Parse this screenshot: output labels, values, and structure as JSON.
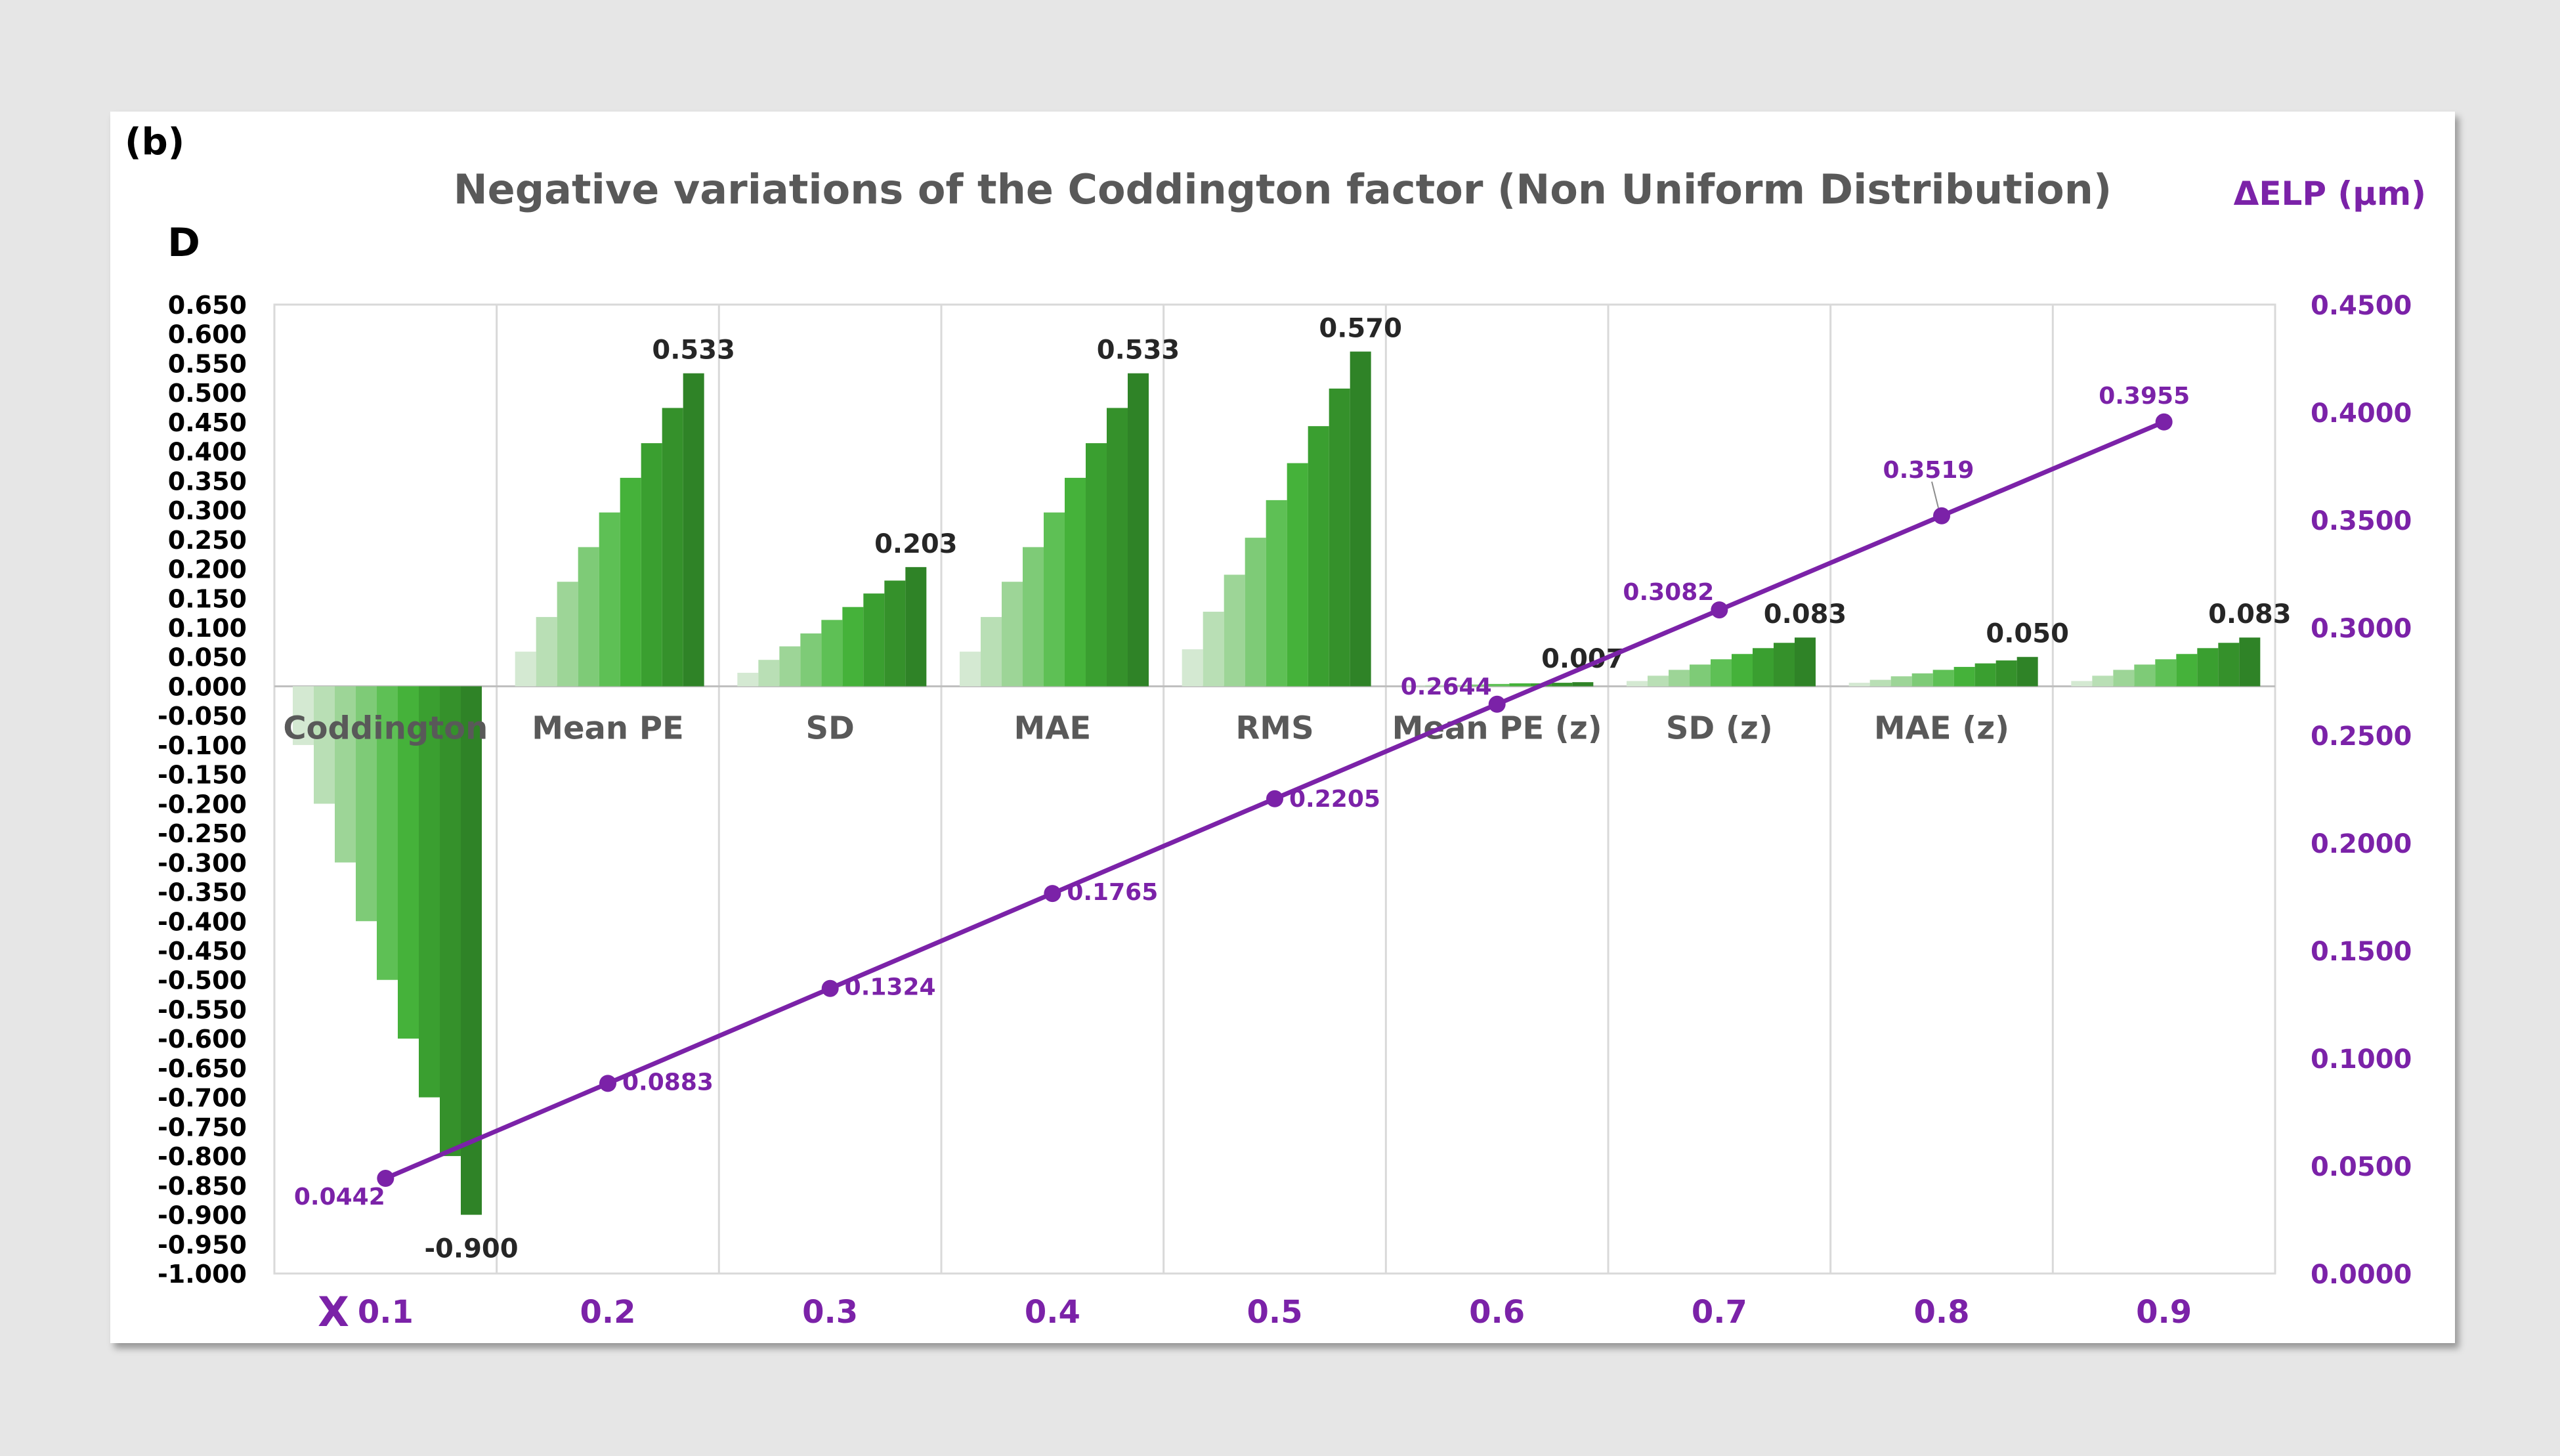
{
  "panel_label": "(b)",
  "chart_data": {
    "type": "bar+line",
    "title": "Negative variations of the Coddington factor (Non Uniform Distribution)",
    "ylabel_left": "D",
    "ylabel_right": "ΔELP (μm)",
    "xlabel": "X",
    "ylim_left": [
      -1.0,
      0.65
    ],
    "ylim_right": [
      0.0,
      0.45
    ],
    "left_ticks": [
      "0.650",
      "0.600",
      "0.550",
      "0.500",
      "0.450",
      "0.400",
      "0.350",
      "0.300",
      "0.250",
      "0.200",
      "0.150",
      "0.100",
      "0.050",
      "0.000",
      "-0.050",
      "-0.100",
      "-0.150",
      "-0.200",
      "-0.250",
      "-0.300",
      "-0.350",
      "-0.400",
      "-0.450",
      "-0.500",
      "-0.550",
      "-0.600",
      "-0.650",
      "-0.700",
      "-0.750",
      "-0.800",
      "-0.850",
      "-0.900",
      "-0.950",
      "-1.000"
    ],
    "right_ticks": [
      "0.4500",
      "0.4000",
      "0.3500",
      "0.3000",
      "0.2500",
      "0.2000",
      "0.1500",
      "0.1000",
      "0.0500",
      "0.0000"
    ],
    "groups": [
      {
        "name": "Coddington",
        "values": [
          -0.1,
          -0.2,
          -0.3,
          -0.4,
          -0.5,
          -0.6,
          -0.7,
          -0.8,
          -0.9
        ],
        "max_label": "-0.900"
      },
      {
        "name": "Mean PE",
        "values": [
          0.059,
          0.118,
          0.178,
          0.237,
          0.296,
          0.355,
          0.414,
          0.474,
          0.533
        ],
        "max_label": "0.533"
      },
      {
        "name": "SD",
        "values": [
          0.023,
          0.045,
          0.068,
          0.09,
          0.113,
          0.135,
          0.158,
          0.18,
          0.203
        ],
        "max_label": "0.203"
      },
      {
        "name": "MAE",
        "values": [
          0.059,
          0.118,
          0.178,
          0.237,
          0.296,
          0.355,
          0.414,
          0.474,
          0.533
        ],
        "max_label": "0.533"
      },
      {
        "name": "RMS",
        "values": [
          0.063,
          0.127,
          0.19,
          0.253,
          0.317,
          0.38,
          0.443,
          0.507,
          0.57
        ],
        "max_label": "0.570"
      },
      {
        "name": "Mean PE (z)",
        "values": [
          0.001,
          0.002,
          0.002,
          0.003,
          0.004,
          0.005,
          0.005,
          0.006,
          0.007
        ],
        "max_label": "0.007"
      },
      {
        "name": "SD (z)",
        "values": [
          0.009,
          0.018,
          0.028,
          0.037,
          0.046,
          0.055,
          0.065,
          0.074,
          0.083
        ],
        "max_label": "0.083"
      },
      {
        "name": "MAE (z)",
        "values": [
          0.006,
          0.011,
          0.017,
          0.022,
          0.028,
          0.033,
          0.039,
          0.044,
          0.05
        ],
        "max_label": "0.050"
      },
      {
        "name": "",
        "values": [
          0.009,
          0.018,
          0.028,
          0.037,
          0.046,
          0.055,
          0.065,
          0.074,
          0.083
        ],
        "max_label": "0.083"
      }
    ],
    "bar_colors": [
      "#d4e9d2",
      "#b9dfb5",
      "#9dd597",
      "#7ecb77",
      "#5ec055",
      "#45b23a",
      "#3a9f30",
      "#35912b",
      "#2f8327"
    ],
    "line_series": {
      "name": "ΔELP",
      "x": [
        "0.1",
        "0.2",
        "0.3",
        "0.4",
        "0.5",
        "0.6",
        "0.7",
        "0.8",
        "0.9"
      ],
      "values": [
        0.0442,
        0.0883,
        0.1324,
        0.1765,
        0.2205,
        0.2644,
        0.3082,
        0.3519,
        0.3955
      ],
      "labels": [
        "0.0442",
        "0.0883",
        "0.1324",
        "0.1765",
        "0.2205",
        "0.2644",
        "0.3082",
        "0.3519",
        "0.3955"
      ]
    },
    "colors": {
      "line": "#7b22a8",
      "axis_right": "#7b22a8",
      "title": "#595959",
      "grid": "#d9d9d9"
    }
  }
}
